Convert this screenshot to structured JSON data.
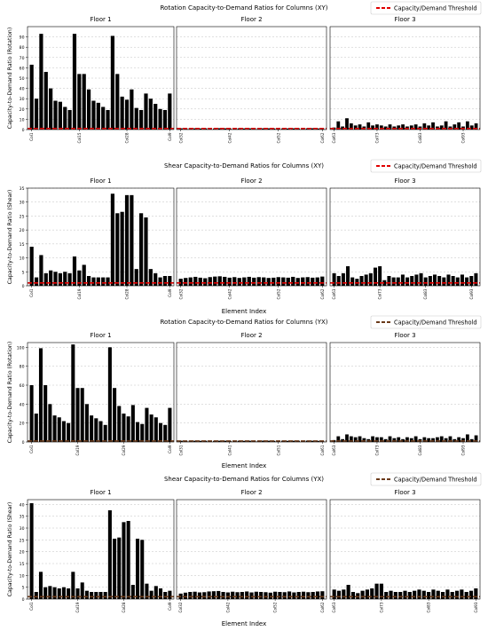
{
  "threshold_color": "#e00000",
  "bar_color": "#000000",
  "chart_data": [
    {
      "type": "bar",
      "title": "Rotation Capacity-to-Demand Ratios for Columns (XY)",
      "ylabel": "Capacity-to-Demand Ratio (Rotation)",
      "xlabel": "",
      "legend": {
        "label": "Capacity/Demand Threshold",
        "location": "top-right",
        "style": "dashed-red"
      },
      "threshold": 1,
      "ylim": [
        0,
        100
      ],
      "yticks": [
        0,
        10,
        20,
        30,
        40,
        50,
        60,
        70,
        80,
        90
      ],
      "grid": "horizontal-dashed",
      "panels": [
        {
          "name": "Floor 1",
          "values": [
            63,
            30,
            93,
            56,
            40,
            28,
            27,
            22,
            19,
            93,
            54,
            54,
            39,
            28,
            26,
            22,
            19,
            91,
            54,
            32,
            29,
            39,
            21,
            19,
            35,
            30,
            25,
            20,
            19,
            35
          ],
          "tick_labels": [
            {
              "index": 0,
              "label": "Col1"
            },
            {
              "index": 10,
              "label": "Col15"
            },
            {
              "index": 20,
              "label": "Col28"
            },
            {
              "index": 29,
              "label": "Col9"
            }
          ]
        },
        {
          "name": "Floor 2",
          "values": [
            1.2,
            1.1,
            1.3,
            1.2,
            1.1,
            1.2,
            1.2,
            1.1,
            1.3,
            1.2,
            1.1,
            1.2,
            1.2,
            1.1,
            1.2,
            1.3,
            1.1,
            1.2,
            1.2,
            1.1,
            1.3,
            1.2,
            1.1,
            1.2,
            1.2,
            1.1,
            1.2,
            1.3,
            1.1,
            1.2
          ],
          "tick_labels": [
            {
              "index": 0,
              "label": "Col32"
            },
            {
              "index": 10,
              "label": "Col42"
            },
            {
              "index": 20,
              "label": "Col52"
            },
            {
              "index": 29,
              "label": "Col62"
            }
          ]
        },
        {
          "name": "Floor 3",
          "values": [
            2,
            8,
            3,
            11,
            6,
            4,
            5,
            3,
            7,
            4,
            5,
            4,
            3,
            5,
            3,
            4,
            5,
            3,
            4,
            5,
            3,
            6,
            4,
            7,
            3,
            4,
            8,
            3,
            5,
            7,
            3,
            8,
            4,
            6
          ],
          "tick_labels": [
            {
              "index": 0,
              "label": "Col63"
            },
            {
              "index": 10,
              "label": "Col73"
            },
            {
              "index": 20,
              "label": "Col83"
            },
            {
              "index": 30,
              "label": "Col93"
            }
          ]
        }
      ]
    },
    {
      "type": "bar",
      "title": "Shear Capacity-to-Demand Ratios for Columns (XY)",
      "ylabel": "Capacity-to-Demand Ratio (Shear)",
      "xlabel": "Element Index",
      "legend": {
        "label": "Capacity/Demand Threshold",
        "location": "top-right",
        "style": "dashed-red"
      },
      "threshold": 1,
      "ylim": [
        0,
        35
      ],
      "yticks": [
        0,
        5,
        10,
        15,
        20,
        25,
        30,
        35
      ],
      "grid": "horizontal-dashed",
      "panels": [
        {
          "name": "Floor 1",
          "values": [
            14,
            3,
            11,
            4.5,
            5.5,
            5,
            4.5,
            5,
            4.5,
            10.5,
            5.5,
            7.5,
            3.5,
            3,
            3,
            3,
            3,
            33,
            26,
            26.5,
            32.5,
            32.5,
            6,
            26,
            24.5,
            6,
            4.5,
            3,
            3.5,
            3.5
          ],
          "tick_labels": [
            {
              "index": 0,
              "label": "Col1"
            },
            {
              "index": 10,
              "label": "Col19"
            },
            {
              "index": 20,
              "label": "Col28"
            },
            {
              "index": 29,
              "label": "Col9"
            }
          ]
        },
        {
          "name": "Floor 2",
          "values": [
            2.5,
            2.8,
            3,
            3.2,
            2.9,
            2.7,
            3.1,
            3.3,
            3.4,
            3.2,
            2.9,
            3.1,
            2.8,
            3,
            3.2,
            2.9,
            3.1,
            3,
            2.8,
            2.9,
            3.1,
            3,
            2.9,
            3.2,
            2.8,
            3,
            3.1,
            2.9,
            3,
            3.3
          ],
          "tick_labels": [
            {
              "index": 0,
              "label": "Col32"
            },
            {
              "index": 10,
              "label": "Col42"
            },
            {
              "index": 20,
              "label": "Col52"
            },
            {
              "index": 29,
              "label": "Col62"
            }
          ]
        },
        {
          "name": "Floor 3",
          "values": [
            4.5,
            3.5,
            4.5,
            7,
            3,
            2.5,
            3.5,
            4,
            4.5,
            6.5,
            7,
            2,
            3.5,
            3,
            3,
            4,
            3,
            3.5,
            4,
            4.5,
            3,
            3.5,
            4,
            3.5,
            3,
            4,
            3.5,
            3,
            4,
            3,
            3.5,
            4.5
          ],
          "tick_labels": [
            {
              "index": 0,
              "label": "Col63"
            },
            {
              "index": 10,
              "label": "Col73"
            },
            {
              "index": 20,
              "label": "Col83"
            },
            {
              "index": 30,
              "label": "Col93"
            }
          ]
        }
      ]
    },
    {
      "type": "bar",
      "title": "Rotation Capacity-to-Demand Ratios for Columns (YX)",
      "ylabel": "Capacity-to-Demand Ratio (Rotation)",
      "xlabel": "Element Index",
      "legend": {
        "label": "Capacity/Demand Threshold",
        "location": "top-right",
        "style": "dashed-brown"
      },
      "threshold": 1,
      "ylim": [
        0,
        105
      ],
      "yticks": [
        0,
        20,
        40,
        60,
        80,
        100
      ],
      "grid": "horizontal-dashed",
      "panels": [
        {
          "name": "Floor 1",
          "values": [
            60,
            30,
            99,
            60,
            40,
            28,
            26,
            22,
            20,
            103,
            57,
            57,
            40,
            28,
            25,
            22,
            18,
            100,
            57,
            38,
            30,
            27,
            39,
            21,
            19,
            36,
            29,
            26,
            20,
            18,
            36
          ],
          "tick_labels": [
            {
              "index": 0,
              "label": "Col1"
            },
            {
              "index": 10,
              "label": "Col19"
            },
            {
              "index": 20,
              "label": "Col29"
            },
            {
              "index": 30,
              "label": "Col9"
            }
          ]
        },
        {
          "name": "Floor 2",
          "values": [
            1.3,
            1.2,
            1.4,
            1.3,
            1.2,
            1.3,
            1.4,
            1.2,
            1.3,
            1.3,
            1.2,
            1.4,
            1.3,
            1.2,
            1.3,
            1.3,
            1.2,
            1.4,
            1.3,
            1.2,
            1.3,
            1.4,
            1.2,
            1.3,
            1.3,
            1.2,
            1.4,
            1.3,
            1.2,
            1.3
          ],
          "tick_labels": [
            {
              "index": 0,
              "label": "Col31"
            },
            {
              "index": 10,
              "label": "Col41"
            },
            {
              "index": 20,
              "label": "Col51"
            },
            {
              "index": 29,
              "label": "Col61"
            }
          ]
        },
        {
          "name": "Floor 3",
          "values": [
            2,
            6,
            3,
            8,
            6,
            5,
            6,
            4,
            3,
            6,
            5,
            5,
            3,
            6,
            4,
            5,
            3,
            5,
            4,
            6,
            3,
            5,
            4,
            4,
            5,
            6,
            4,
            6,
            3,
            5,
            4,
            8,
            3,
            7
          ],
          "tick_labels": [
            {
              "index": 0,
              "label": "Col63"
            },
            {
              "index": 10,
              "label": "Col73"
            },
            {
              "index": 20,
              "label": "Col83"
            },
            {
              "index": 30,
              "label": "Col93"
            }
          ]
        }
      ]
    },
    {
      "type": "bar",
      "title": "Shear Capacity-to-Demand Ratios for Columns (YX)",
      "ylabel": "Capacity-to-Demand Ratio (Shear)",
      "xlabel": "Element Index",
      "legend": {
        "label": "Capacity/Demand Threshold",
        "location": "top-right",
        "style": "dashed-brown"
      },
      "threshold": 1,
      "ylim": [
        0,
        42
      ],
      "yticks": [
        0,
        5,
        10,
        15,
        20,
        25,
        30,
        35,
        40
      ],
      "grid": "horizontal-dashed",
      "panels": [
        {
          "name": "Floor 1",
          "values": [
            40.5,
            3,
            11.5,
            5,
            5.5,
            5,
            4.5,
            5,
            4.5,
            11.5,
            4.5,
            7,
            3.5,
            3,
            3,
            3,
            3,
            37.5,
            25.5,
            26,
            32.5,
            33,
            6,
            25.5,
            25,
            6.5,
            3.5,
            5.5,
            4.5,
            3,
            3.5
          ],
          "tick_labels": [
            {
              "index": 0,
              "label": "Col1"
            },
            {
              "index": 10,
              "label": "Col19"
            },
            {
              "index": 20,
              "label": "Col28"
            },
            {
              "index": 30,
              "label": "Col9"
            }
          ]
        },
        {
          "name": "Floor 2",
          "values": [
            2.3,
            2.7,
            3,
            3.1,
            2.8,
            2.9,
            3.2,
            3.3,
            3.4,
            3,
            2.8,
            3.1,
            2.9,
            3,
            3.2,
            2.8,
            3.1,
            3,
            2.9,
            2.7,
            3.1,
            3,
            2.9,
            3.2,
            2.8,
            3,
            3.1,
            2.9,
            3,
            3.2,
            3.3
          ],
          "tick_labels": [
            {
              "index": 0,
              "label": "Col32"
            },
            {
              "index": 10,
              "label": "Col42"
            },
            {
              "index": 20,
              "label": "Col52"
            },
            {
              "index": 30,
              "label": "Col62"
            }
          ]
        },
        {
          "name": "Floor 3",
          "values": [
            4,
            3.5,
            4,
            6,
            3,
            2.5,
            3.5,
            4,
            4.5,
            6.5,
            6.5,
            3,
            3.5,
            3,
            3,
            3.5,
            3,
            3.5,
            4,
            3.5,
            3,
            4,
            3.5,
            3,
            4,
            3,
            3.5,
            4,
            3,
            3.5,
            4.5
          ],
          "tick_labels": [
            {
              "index": 0,
              "label": "Col63"
            },
            {
              "index": 10,
              "label": "Col73"
            },
            {
              "index": 20,
              "label": "Col83"
            },
            {
              "index": 30,
              "label": "Col93"
            }
          ]
        }
      ]
    }
  ]
}
